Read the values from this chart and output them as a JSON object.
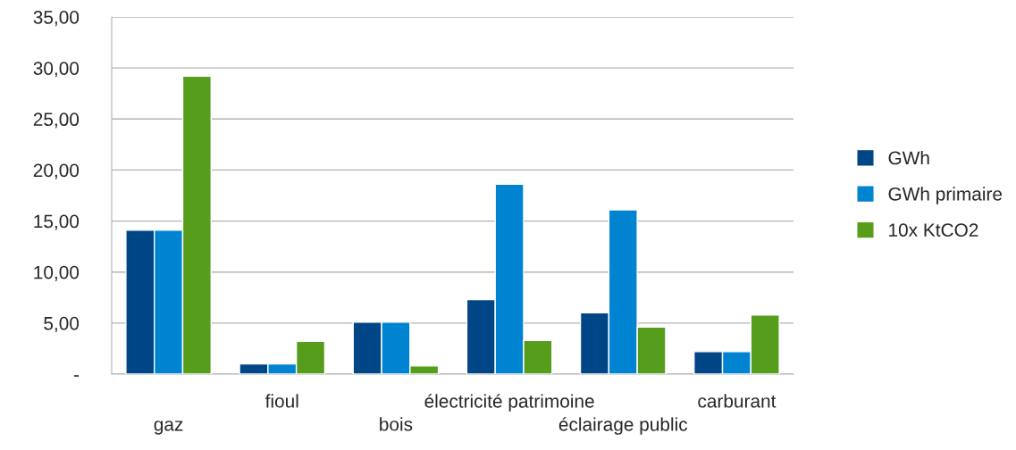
{
  "chart_data": {
    "type": "bar",
    "categories": [
      "gaz",
      "fioul",
      "bois",
      "électricité patrimoine",
      "éclairage public",
      "carburant"
    ],
    "series": [
      {
        "name": "GWh",
        "color": "#004586",
        "values": [
          14.1,
          1.0,
          5.1,
          7.3,
          6.0,
          2.2
        ]
      },
      {
        "name": "GWh primaire",
        "color": "#0084d1",
        "values": [
          14.1,
          1.0,
          5.1,
          18.6,
          16.1,
          2.2
        ]
      },
      {
        "name": "10x KtCO2",
        "color": "#579d1c",
        "values": [
          29.2,
          3.2,
          0.8,
          3.3,
          4.6,
          5.8
        ]
      }
    ],
    "ylim": [
      0,
      35
    ],
    "yticks": [
      {
        "value": 0,
        "label": "-"
      },
      {
        "value": 5,
        "label": "5,00"
      },
      {
        "value": 10,
        "label": "10,00"
      },
      {
        "value": 15,
        "label": "15,00"
      },
      {
        "value": 20,
        "label": "20,00"
      },
      {
        "value": 25,
        "label": "25,00"
      },
      {
        "value": 30,
        "label": "30,00"
      },
      {
        "value": 35,
        "label": "35,00"
      }
    ],
    "grid": "y",
    "legend": "right"
  }
}
